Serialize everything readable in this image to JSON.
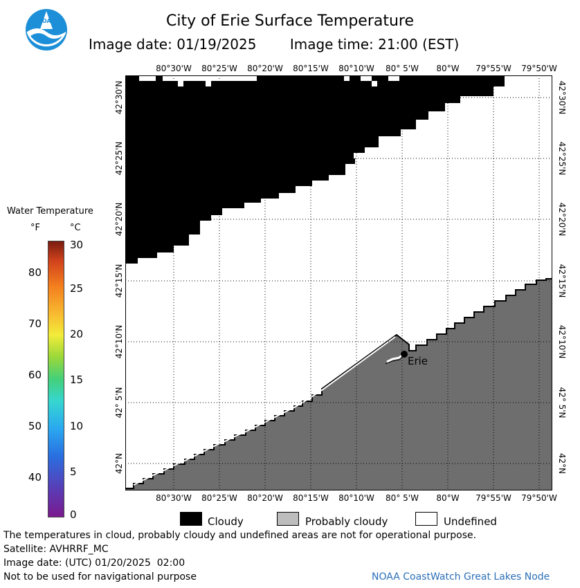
{
  "title": "City of Erie Surface Temperature",
  "image_date": "Image date: 01/19/2025",
  "image_time": "Image time: 21:00 (EST)",
  "logo_text": "NOAA",
  "map": {
    "longitude_ticks": [
      "80°30'W",
      "80°25'W",
      "80°20'W",
      "80°15'W",
      "80°10'W",
      "80° 5'W",
      "80°W",
      "79°55'W",
      "79°50'W"
    ],
    "latitude_ticks": [
      "42°30'N",
      "42°25'N",
      "42°20'N",
      "42°15'N",
      "42°10'N",
      "42° 5'N",
      "42°N"
    ],
    "city_label": "Erie"
  },
  "legend": {
    "title": "Water Temperature",
    "unit_f": "°F",
    "unit_c": "°C",
    "f_ticks": [
      "80",
      "70",
      "60",
      "50",
      "40"
    ],
    "c_ticks": [
      "30",
      "25",
      "20",
      "15",
      "10",
      "5",
      "0"
    ]
  },
  "key": {
    "cloudy": "Cloudy",
    "probably_cloudy": "Probably cloudy",
    "undefined": "Undefined"
  },
  "colors": {
    "cloudy": "#000000",
    "probably_cloudy": "#6e6e6e",
    "undefined": "#ffffff",
    "logo_blue": "#1c8fd8",
    "credit_blue": "#2a6fb8"
  },
  "notes": {
    "disclaimer": "The temperatures in cloud, probably cloudy and undefined areas are not for operational purpose.",
    "satellite": "Satellite: AVHRRF_MC",
    "utc_date": "Image date: (UTC) 01/20/2025  02:00",
    "nav": "Not to be used for navigational purpose",
    "credit": "NOAA CoastWatch Great Lakes Node"
  }
}
